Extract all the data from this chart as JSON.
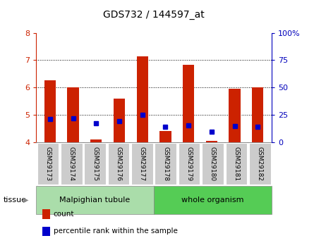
{
  "title": "GDS732 / 144597_at",
  "samples": [
    "GSM29173",
    "GSM29174",
    "GSM29175",
    "GSM29176",
    "GSM29177",
    "GSM29178",
    "GSM29179",
    "GSM29180",
    "GSM29181",
    "GSM29182"
  ],
  "count_values": [
    6.25,
    6.0,
    4.1,
    5.6,
    7.15,
    4.4,
    6.82,
    4.05,
    5.95,
    6.0
  ],
  "percentile_values": [
    4.85,
    4.88,
    4.68,
    4.77,
    5.0,
    4.55,
    4.62,
    4.38,
    4.58,
    4.56
  ],
  "count_base": 4.0,
  "ylim": [
    4.0,
    8.0
  ],
  "yticks": [
    4,
    5,
    6,
    7,
    8
  ],
  "ytick_labels": [
    "4",
    "5",
    "6",
    "7",
    "8"
  ],
  "right_ytick_labels": [
    "0",
    "25",
    "50",
    "75",
    "100%"
  ],
  "right_ytick_values": [
    4.0,
    5.0,
    6.0,
    7.0,
    8.0
  ],
  "bar_color": "#cc2200",
  "dot_color": "#0000cc",
  "tissue_groups": [
    {
      "label": "Malpighian tubule",
      "indices": [
        0,
        1,
        2,
        3,
        4
      ],
      "color": "#aaddaa"
    },
    {
      "label": "whole organism",
      "indices": [
        5,
        6,
        7,
        8,
        9
      ],
      "color": "#55cc55"
    }
  ],
  "legend_items": [
    {
      "label": "count",
      "color": "#cc2200"
    },
    {
      "label": "percentile rank within the sample",
      "color": "#0000cc"
    }
  ],
  "tissue_label": "tissue",
  "bg_color": "#ffffff",
  "plot_bg": "#ffffff",
  "tick_color_left": "#cc2200",
  "tick_color_right": "#0000bb",
  "bar_width": 0.5,
  "xticklabel_bg": "#cccccc",
  "grid_dotted_values": [
    5,
    6,
    7
  ]
}
